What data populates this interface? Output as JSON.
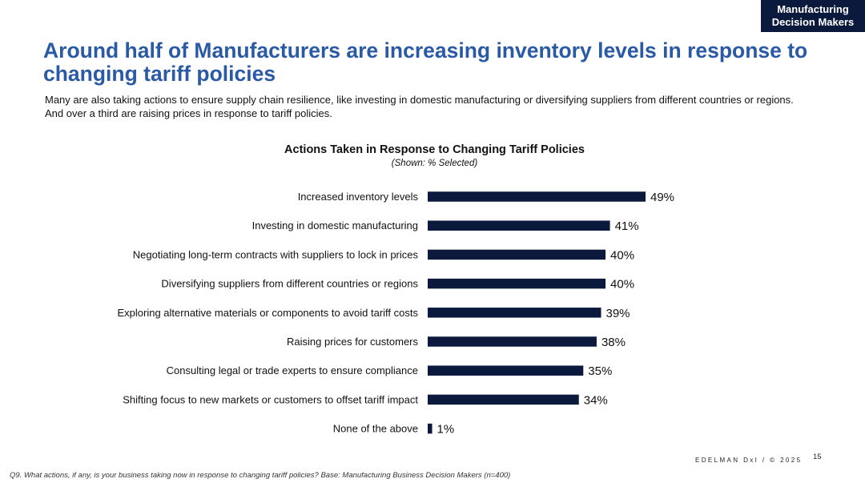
{
  "corner_tag": {
    "line1": "Manufacturing",
    "line2": "Decision Makers"
  },
  "headline": "Around half of Manufacturers are increasing inventory levels in response to changing tariff policies",
  "subtext": "Many are also taking actions to ensure supply chain resilience, like investing in domestic manufacturing or diversifying suppliers from different countries or regions. And over a third are raising prices in response to tariff policies.",
  "chart_data": {
    "type": "bar",
    "orientation": "horizontal",
    "title": "Actions Taken in Response to Changing Tariff Policies",
    "subtitle": "(Shown: % Selected)",
    "categories": [
      "Increased inventory levels",
      "Investing in domestic manufacturing",
      "Negotiating long-term contracts with suppliers to lock in prices",
      "Diversifying suppliers from different countries or regions",
      "Exploring alternative materials or components to avoid tariff costs",
      "Raising prices for customers",
      "Consulting legal or trade experts to ensure compliance",
      "Shifting focus to new markets or customers to offset tariff impact",
      "None of the above"
    ],
    "values": [
      49,
      41,
      40,
      40,
      39,
      38,
      35,
      34,
      1
    ],
    "data_labels": [
      "49%",
      "41%",
      "40%",
      "40%",
      "39%",
      "38%",
      "35%",
      "34%",
      "1%"
    ],
    "unit": "%",
    "xlim": [
      0,
      49
    ],
    "bar_color": "#0b1a3c",
    "grid": false,
    "legend": "none"
  },
  "footer": {
    "brand": "EDELMAN DxI / © 2025",
    "page_number": "15",
    "footnote": "Q9. What actions, if any, is your business taking now in response to changing tariff policies? Base: Manufacturing Business Decision Makers  (n=400)"
  },
  "colors": {
    "headline": "#2a5aa6",
    "corner_tag_bg": "#0b1a3c",
    "bar": "#0b1a3c"
  }
}
